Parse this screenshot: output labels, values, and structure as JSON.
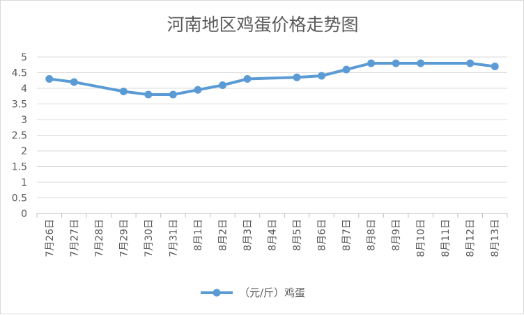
{
  "chart_data": {
    "type": "line",
    "title": "河南地区鸡蛋价格走势图",
    "categories": [
      "7月26日",
      "7月27日",
      "7月28日",
      "7月29日",
      "7月30日",
      "7月31日",
      "8月1日",
      "8月2日",
      "8月3日",
      "8月4日",
      "8月5日",
      "8月6日",
      "8月7日",
      "8月8日",
      "8月9日",
      "8月10日",
      "8月11日",
      "8月12日",
      "8月13日"
    ],
    "series": [
      {
        "name": "（元/斤）鸡蛋",
        "values": [
          4.3,
          4.2,
          null,
          3.9,
          3.8,
          3.8,
          3.95,
          4.1,
          4.3,
          null,
          4.35,
          4.4,
          4.6,
          4.8,
          4.8,
          4.8,
          null,
          4.8,
          4.7
        ],
        "color": "#5b9bd5"
      }
    ],
    "ylim": [
      0,
      5
    ],
    "yticks": [
      "0",
      "0.5",
      "1",
      "1.5",
      "2",
      "2.5",
      "3",
      "3.5",
      "4",
      "4.5",
      "5"
    ],
    "grid": true,
    "legend_position": "bottom"
  }
}
